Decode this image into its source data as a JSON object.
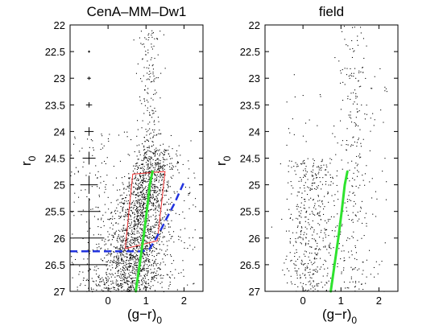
{
  "chart_data": [
    {
      "type": "scatter",
      "title": "CenA–MM–Dw1",
      "xlabel": "(g−r)",
      "xlabel_sub": "0",
      "ylabel": "r",
      "ylabel_sub": "0",
      "xlim": [
        -1,
        2.5
      ],
      "ylim": [
        27,
        22
      ],
      "y_inverted": true,
      "xticks": [
        0,
        1,
        2
      ],
      "yticks": [
        22,
        22.5,
        23,
        23.5,
        24,
        24.5,
        25,
        25.5,
        26,
        26.5,
        27
      ],
      "rgb_isochrone": {
        "color": "#2ee32e",
        "x": [
          0.73,
          0.83,
          0.93,
          1.02,
          1.1,
          1.17
        ],
        "y": [
          27,
          26.5,
          26.0,
          25.5,
          25.0,
          24.75
        ]
      },
      "completeness_limit": {
        "color": "#2233dd",
        "x": [
          -1,
          0.9,
          1.1,
          1.35,
          1.6,
          1.75,
          2.0
        ],
        "y": [
          26.25,
          26.25,
          26.2,
          25.9,
          25.55,
          25.35,
          24.95
        ]
      },
      "selection_box": {
        "color": "#e33",
        "x": [
          0.45,
          0.65,
          1.5,
          1.3,
          0.45
        ],
        "y": [
          26.2,
          24.8,
          24.75,
          26.05,
          26.2
        ]
      },
      "error_bars": {
        "x": -0.5,
        "y": [
          22.5,
          23,
          23.5,
          24,
          24.5,
          25,
          25.5,
          26,
          26.5
        ],
        "xerr": [
          0.03,
          0.05,
          0.08,
          0.12,
          0.17,
          0.23,
          0.3,
          0.4,
          0.5
        ],
        "yerr": [
          0.02,
          0.03,
          0.05,
          0.08,
          0.12,
          0.17,
          0.25,
          0.35,
          0.8
        ]
      },
      "stars": {
        "n": 2400,
        "main_cloud": {
          "n": 1900,
          "y_min": 24.3,
          "y_max": 27.0,
          "x_center_at_r25": 1.05,
          "slope_x_per_mag": -0.3,
          "x_spread": 0.35
        },
        "bright_stream": {
          "n": 160,
          "y_min": 22.1,
          "y_max": 24.4,
          "x_center": 1.1,
          "x_spread": 0.15
        },
        "field_scatter": {
          "n": 340,
          "x_range": [
            -1,
            2.3
          ],
          "y_range": [
            24.0,
            27.0
          ]
        }
      }
    },
    {
      "type": "scatter",
      "title": "field",
      "xlabel": "(g−r)",
      "xlabel_sub": "0",
      "ylabel": "r",
      "ylabel_sub": "0",
      "xlim": [
        -1,
        2.5
      ],
      "ylim": [
        27,
        22
      ],
      "y_inverted": true,
      "xticks": [
        0,
        1,
        2
      ],
      "yticks": [
        22,
        22.5,
        23,
        23.5,
        24,
        24.5,
        25,
        25.5,
        26,
        26.5,
        27
      ],
      "rgb_isochrone": {
        "color": "#2ee32e",
        "x": [
          0.73,
          0.83,
          0.93,
          1.02,
          1.1,
          1.17
        ],
        "y": [
          27,
          26.5,
          26.0,
          25.5,
          25.0,
          24.75
        ]
      },
      "stars": {
        "n": 780,
        "blue_cloud": {
          "n": 420,
          "x_center": 0.2,
          "x_spread": 0.35,
          "y_min": 24.5,
          "y_max": 27.0
        },
        "red_stream": {
          "n": 200,
          "x_center": 1.35,
          "x_spread": 0.2,
          "y_min": 22.0,
          "y_max": 27.0
        },
        "field_scatter": {
          "n": 160,
          "x_range": [
            -0.5,
            2.2
          ],
          "y_range": [
            22.8,
            27.0
          ]
        }
      }
    }
  ]
}
